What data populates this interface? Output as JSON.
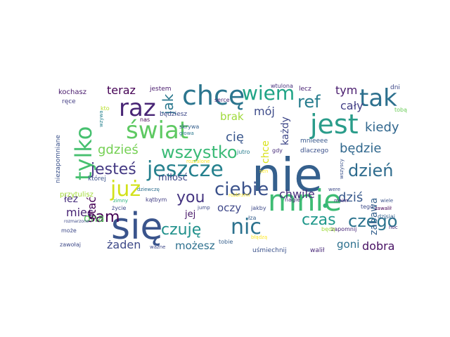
{
  "word_cloud": {
    "words": [
      {
        "text": "nie",
        "color": "#35608d"
      },
      {
        "text": "się",
        "color": "#3a548c"
      },
      {
        "text": "mnie",
        "color": "#3ebc74"
      },
      {
        "text": "jest",
        "color": "#2a9c8a"
      },
      {
        "text": "chcę",
        "color": "#2b758e"
      },
      {
        "text": "tak",
        "color": "#2d708e"
      },
      {
        "text": "świat",
        "color": "#5ec962"
      },
      {
        "text": "jeszcze",
        "color": "#26818e"
      },
      {
        "text": "raz",
        "color": "#482575"
      },
      {
        "text": "tylko",
        "color": "#46c06f"
      },
      {
        "text": "już",
        "color": "#d2e21b"
      },
      {
        "text": "wiem",
        "color": "#20a486"
      },
      {
        "text": "ciebie",
        "color": "#3b528b"
      },
      {
        "text": "nic",
        "color": "#2c728e"
      },
      {
        "text": "czuję",
        "color": "#21918c"
      },
      {
        "text": "dzień",
        "color": "#2f6c8e"
      },
      {
        "text": "wszystko",
        "color": "#3aba76"
      },
      {
        "text": "czego",
        "color": "#2c738e"
      },
      {
        "text": "jesteś",
        "color": "#443983"
      },
      {
        "text": "sam",
        "color": "#440154"
      },
      {
        "text": "ref",
        "color": "#287d8e"
      },
      {
        "text": "czas",
        "color": "#1f988b"
      },
      {
        "text": "kiedy",
        "color": "#31678e"
      },
      {
        "text": "będzie",
        "color": "#31688e"
      },
      {
        "text": "you",
        "color": "#453581"
      },
      {
        "text": "dziś",
        "color": "#38598c"
      },
      {
        "text": "jak",
        "color": "#2a788e"
      },
      {
        "text": "mój",
        "color": "#3e4c8a"
      },
      {
        "text": "gdzieś",
        "color": "#75d054"
      },
      {
        "text": "teraz",
        "color": "#440154"
      },
      {
        "text": "mieć",
        "color": "#482475"
      },
      {
        "text": "tym",
        "color": "#481b6d"
      },
      {
        "text": "cały",
        "color": "#433e85"
      },
      {
        "text": "ona",
        "color": "#5ec962"
      },
      {
        "text": "żaden",
        "color": "#3e4a89"
      },
      {
        "text": "oczy",
        "color": "#3f4889"
      },
      {
        "text": "chwile",
        "color": "#472d7b"
      },
      {
        "text": "cię",
        "color": "#39568c"
      },
      {
        "text": "możesz",
        "color": "#2d708e"
      },
      {
        "text": "stać",
        "color": "#440154"
      },
      {
        "text": "goni",
        "color": "#2d708e"
      },
      {
        "text": "dobra",
        "color": "#471063"
      },
      {
        "text": "brak",
        "color": "#9fda3a"
      },
      {
        "text": "miłość",
        "color": "#3f4889"
      },
      {
        "text": "każdy",
        "color": "#3f4889"
      },
      {
        "text": "zabawa",
        "color": "#34608d"
      },
      {
        "text": "łez",
        "color": "#472e7c"
      },
      {
        "text": "jej",
        "color": "#48186a"
      },
      {
        "text": "chce",
        "color": "#d8e219"
      },
      {
        "text": "przytulisz",
        "color": "#a2da37"
      },
      {
        "text": "kochasz",
        "color": "#481a6c"
      },
      {
        "text": "jestem",
        "color": "#481a6c"
      },
      {
        "text": "lecz",
        "color": "#482173"
      },
      {
        "text": "dni",
        "color": "#3e4989"
      },
      {
        "text": "ręce",
        "color": "#433d84"
      },
      {
        "text": "kto",
        "color": "#b8de29"
      },
      {
        "text": "będziesz",
        "color": "#3e4a89"
      },
      {
        "text": "serce",
        "color": "#482677"
      },
      {
        "text": "wtulona",
        "color": "#472f7d"
      },
      {
        "text": "tobą",
        "color": "#6ccd5a"
      },
      {
        "text": "nas",
        "color": "#440154"
      },
      {
        "text": "skrywa",
        "color": "#355f8d"
      },
      {
        "text": "jutro",
        "color": "#287c8e"
      },
      {
        "text": "gdy",
        "color": "#472c7a"
      },
      {
        "text": "dlaczego",
        "color": "#3b518b"
      },
      {
        "text": "mnieeee",
        "color": "#38588c"
      },
      {
        "text": "niezapomniane",
        "color": "#3b528b"
      },
      {
        "text": "której",
        "color": "#3b528b"
      },
      {
        "text": "wzywa",
        "color": "#26828e"
      },
      {
        "text": "głowa",
        "color": "#2a788e"
      },
      {
        "text": "rozżalone",
        "color": "#fde725"
      },
      {
        "text": "dziewczę",
        "color": "#2e6f8e"
      },
      {
        "text": "zimny",
        "color": "#2db27d"
      },
      {
        "text": "kątbym",
        "color": "#433e85"
      },
      {
        "text": "życie",
        "color": "#3e4a89"
      },
      {
        "text": "jump",
        "color": "#3e4a89"
      },
      {
        "text": "jakby",
        "color": "#3e4a89"
      },
      {
        "text": "nagle",
        "color": "#482878"
      },
      {
        "text": "wszyscy",
        "color": "#3b528b"
      },
      {
        "text": "were",
        "color": "#3e4a89"
      },
      {
        "text": "moim",
        "color": "#482878"
      },
      {
        "text": "tego",
        "color": "#3e4c8a"
      },
      {
        "text": "wiele",
        "color": "#3b528b"
      },
      {
        "text": "dzisiaj",
        "color": "#35608d"
      },
      {
        "text": "zawalił",
        "color": "#440154"
      },
      {
        "text": "może",
        "color": "#3e4a89"
      },
      {
        "text": "zawołaj",
        "color": "#3e4a89"
      },
      {
        "text": "ważne",
        "color": "#3e4a89"
      },
      {
        "text": "tobie",
        "color": "#355f8d"
      },
      {
        "text": "łza",
        "color": "#355f8d"
      },
      {
        "text": "zapomnij",
        "color": "#482878"
      },
      {
        "text": "będę",
        "color": "#9fda3a"
      },
      {
        "text": "noc",
        "color": "#482878"
      },
      {
        "text": "uśmiechnij",
        "color": "#3b528b"
      },
      {
        "text": "walił",
        "color": "#482878"
      },
      {
        "text": "błądzą",
        "color": "#fde725"
      },
      {
        "text": "sen",
        "color": "#fde725"
      },
      {
        "text": "rozbrzmi",
        "color": "#fde725"
      },
      {
        "text": "rozmarzone",
        "color": "#3e4a89"
      },
      {
        "text": "sam",
        "color": "#440154"
      },
      {
        "text": "●",
        "color": "#35b779"
      }
    ]
  }
}
